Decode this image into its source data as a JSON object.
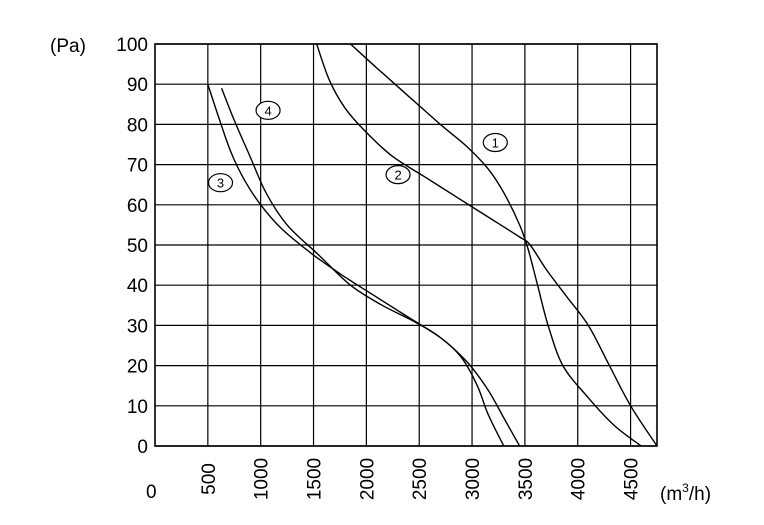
{
  "chart_data": {
    "type": "line",
    "title": "",
    "ylabel": "(Pa)",
    "xlabel": "(m³/h)",
    "xlabel_base": "(m",
    "xlabel_sup": "3",
    "xlabel_tail": "/h)",
    "xlim": [
      0,
      4750
    ],
    "ylim": [
      0,
      100
    ],
    "x_origin_label": "0",
    "xticks": [
      500,
      1000,
      1500,
      2000,
      2500,
      3000,
      3500,
      4000,
      4500
    ],
    "xtick_labels": [
      "500",
      "1000",
      "1500",
      "2000",
      "2500",
      "3000",
      "3500",
      "4000",
      "4500"
    ],
    "yticks": [
      0,
      10,
      20,
      30,
      40,
      50,
      60,
      70,
      80,
      90,
      100
    ],
    "ytick_labels": [
      "0",
      "10",
      "20",
      "30",
      "40",
      "50",
      "60",
      "70",
      "80",
      "90",
      "100"
    ],
    "grid": true,
    "series": [
      {
        "name": "1",
        "label_at": [
          3220,
          75.5
        ],
        "points": [
          [
            1850,
            100
          ],
          [
            2100,
            94
          ],
          [
            2400,
            87
          ],
          [
            2700,
            80
          ],
          [
            2950,
            74.5
          ],
          [
            3150,
            69
          ],
          [
            3300,
            63
          ],
          [
            3450,
            55
          ],
          [
            3530,
            49
          ],
          [
            3620,
            40
          ],
          [
            3720,
            30
          ],
          [
            3860,
            20
          ],
          [
            4100,
            12
          ],
          [
            4350,
            5
          ],
          [
            4600,
            0
          ]
        ]
      },
      {
        "name": "2",
        "label_at": [
          2300,
          67.5
        ],
        "points": [
          [
            1530,
            100
          ],
          [
            1650,
            91
          ],
          [
            1800,
            84
          ],
          [
            2000,
            78
          ],
          [
            2250,
            72
          ],
          [
            2550,
            67
          ],
          [
            2850,
            62
          ],
          [
            3150,
            57
          ],
          [
            3450,
            52
          ],
          [
            3550,
            50
          ],
          [
            3700,
            44
          ],
          [
            3900,
            37
          ],
          [
            4100,
            30
          ],
          [
            4300,
            20
          ],
          [
            4500,
            10
          ],
          [
            4750,
            0
          ]
        ]
      },
      {
        "name": "3",
        "label_at": [
          620,
          65.5
        ],
        "points": [
          [
            500,
            90
          ],
          [
            600,
            82
          ],
          [
            720,
            73
          ],
          [
            850,
            66
          ],
          [
            1000,
            60
          ],
          [
            1200,
            54
          ],
          [
            1500,
            47.5
          ],
          [
            1800,
            42
          ],
          [
            2100,
            37
          ],
          [
            2400,
            32
          ],
          [
            2700,
            27
          ],
          [
            2900,
            22
          ],
          [
            3050,
            15
          ],
          [
            3150,
            8
          ],
          [
            3300,
            0
          ]
        ]
      },
      {
        "name": "4",
        "label_at": [
          1070,
          83.5
        ],
        "points": [
          [
            630,
            89
          ],
          [
            750,
            81
          ],
          [
            900,
            72
          ],
          [
            1050,
            63
          ],
          [
            1250,
            55
          ],
          [
            1550,
            47.5
          ],
          [
            1850,
            40
          ],
          [
            2150,
            35
          ],
          [
            2450,
            31
          ],
          [
            2700,
            27
          ],
          [
            2950,
            21
          ],
          [
            3150,
            14
          ],
          [
            3300,
            7
          ],
          [
            3450,
            0
          ]
        ]
      }
    ]
  }
}
